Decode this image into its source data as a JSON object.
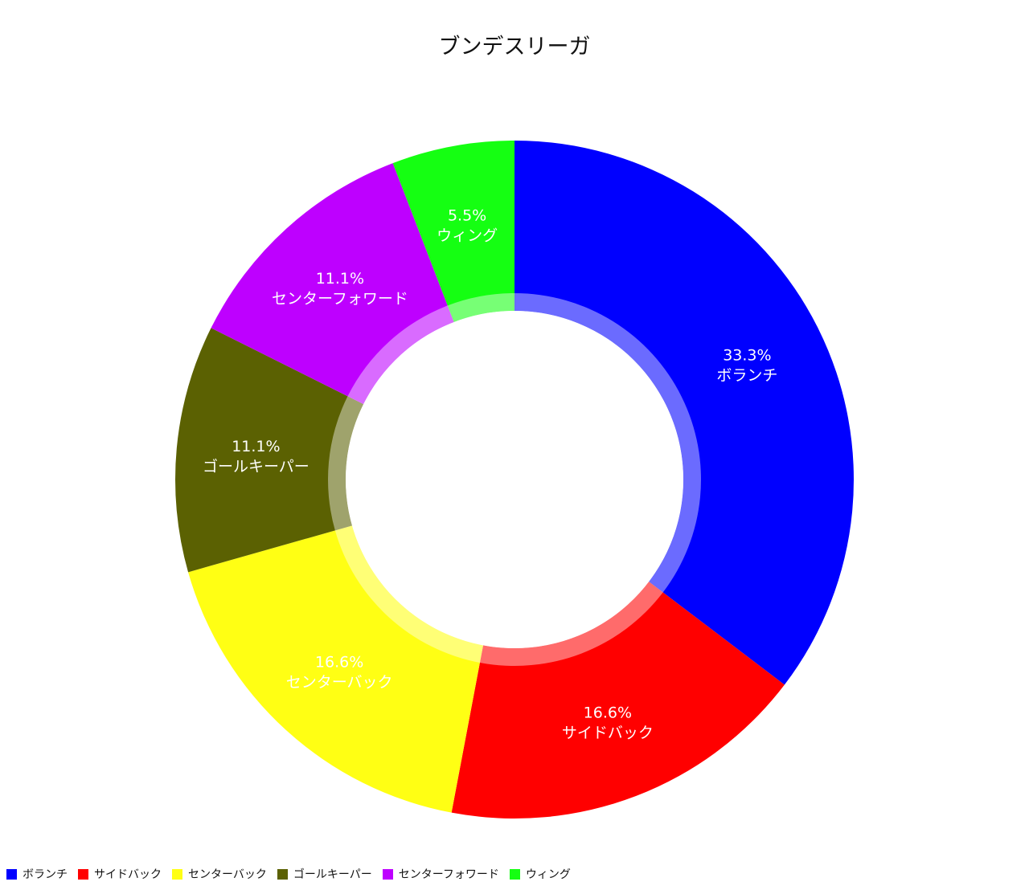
{
  "chart_data": {
    "type": "pie",
    "style": "donut",
    "title": "ブンデスリーガ",
    "labels": [
      "ボランチ",
      "サイドバック",
      "センターバック",
      "ゴールキーパー",
      "センターフォワード",
      "ウィング"
    ],
    "values": [
      33.3,
      16.6,
      16.6,
      11.1,
      11.1,
      5.5
    ],
    "percent_labels": [
      "33.3%",
      "16.6%",
      "16.6%",
      "11.1%",
      "11.1%",
      "5.5%"
    ],
    "colors": [
      "#0000ff",
      "#ff0000",
      "#ffff14",
      "#5b6102",
      "#be00ff",
      "#15ff12"
    ],
    "legend_position": "bottom-left"
  }
}
